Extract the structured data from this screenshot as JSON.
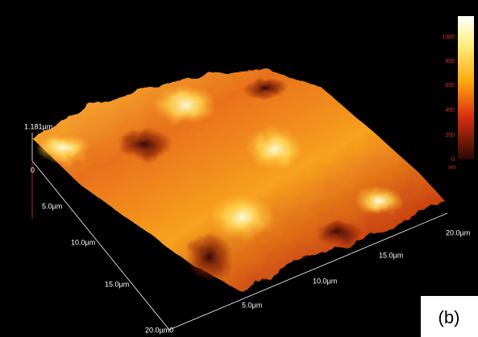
{
  "z_axis": {
    "max_label": "1.181µm"
  },
  "left_axis": {
    "labels": [
      "0",
      "5.0µm",
      "10.0µm",
      "15.0µm",
      "20.0µm0"
    ]
  },
  "right_axis": {
    "labels": [
      "5.0µm",
      "10.0µm",
      "15.0µm",
      "20.0µm"
    ]
  },
  "colorbar": {
    "labels": [
      "1000",
      "800",
      "600",
      "400",
      "200",
      "0"
    ],
    "unit": "nm"
  },
  "panel_label": "(b)"
}
